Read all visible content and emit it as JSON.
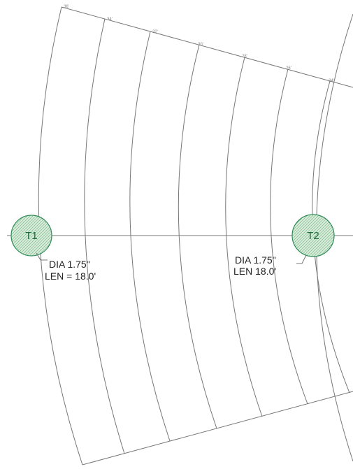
{
  "stations": [
    "36'",
    "34'",
    "32'",
    "30'",
    "28'",
    "26'",
    "24'"
  ],
  "tendons": [
    {
      "tag": "T1",
      "dia": "DIA 1.75\"",
      "len": "LEN = 18.0'"
    },
    {
      "tag": "T2",
      "dia": "DIA 1.75\"",
      "len": "LEN 18.0'"
    }
  ]
}
